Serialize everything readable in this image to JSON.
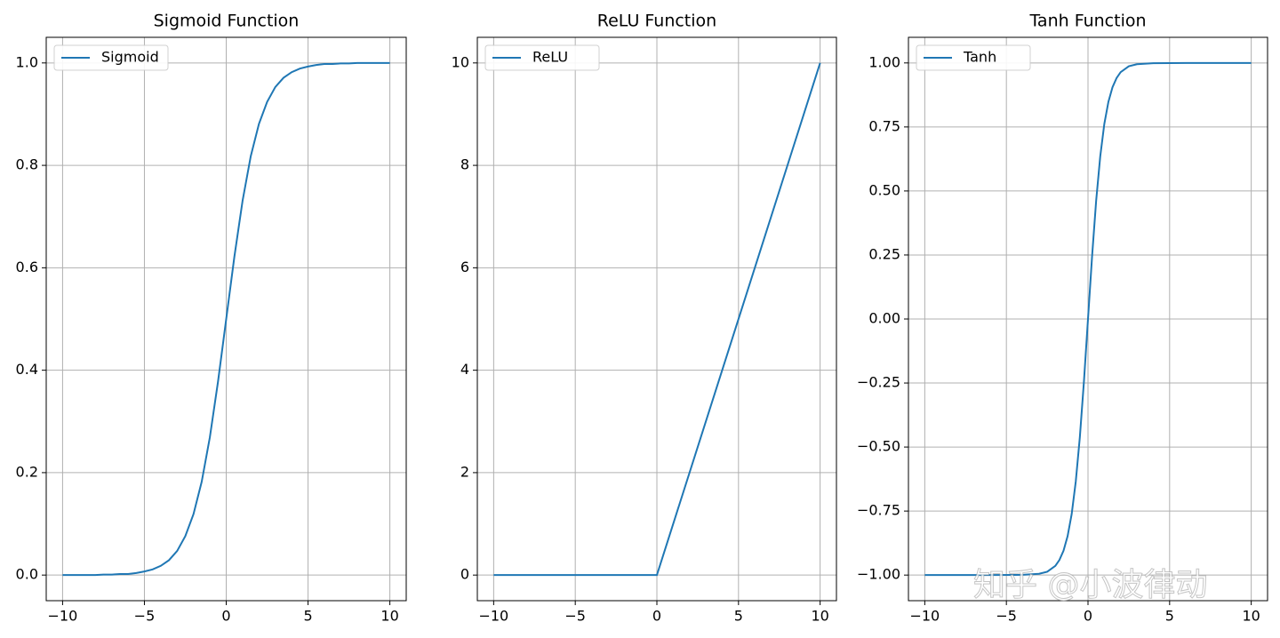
{
  "chart_data": [
    {
      "type": "line",
      "title": "Sigmoid Function",
      "x": [
        -10,
        -9.5,
        -9,
        -8.5,
        -8,
        -7.5,
        -7,
        -6.5,
        -6,
        -5.5,
        -5,
        -4.5,
        -4,
        -3.5,
        -3,
        -2.5,
        -2,
        -1.5,
        -1,
        -0.5,
        0,
        0.5,
        1,
        1.5,
        2,
        2.5,
        3,
        3.5,
        4,
        4.5,
        5,
        5.5,
        6,
        6.5,
        7,
        7.5,
        8,
        8.5,
        9,
        9.5,
        10
      ],
      "series": [
        {
          "name": "Sigmoid",
          "color": "#1f77b4",
          "values": [
            0,
            0,
            0,
            0,
            0,
            0.001,
            0.001,
            0.002,
            0.002,
            0.004,
            0.007,
            0.011,
            0.018,
            0.029,
            0.047,
            0.076,
            0.119,
            0.182,
            0.269,
            0.378,
            0.5,
            0.622,
            0.731,
            0.818,
            0.881,
            0.924,
            0.953,
            0.971,
            0.982,
            0.989,
            0.993,
            0.996,
            0.998,
            0.998,
            0.999,
            0.999,
            1,
            1,
            1,
            1,
            1
          ]
        }
      ],
      "xlim": [
        -11,
        11
      ],
      "ylim": [
        -0.05,
        1.05
      ],
      "xticks": [
        {
          "value": -10,
          "label": "−10"
        },
        {
          "value": -5,
          "label": "−5"
        },
        0,
        5,
        10
      ],
      "yticks": [
        {
          "value": 0,
          "label": "0.0"
        },
        {
          "value": 0.2,
          "label": "0.2"
        },
        {
          "value": 0.4,
          "label": "0.4"
        },
        {
          "value": 0.6,
          "label": "0.6"
        },
        {
          "value": 0.8,
          "label": "0.8"
        },
        {
          "value": 1,
          "label": "1.0"
        }
      ],
      "grid": true,
      "legend": "upper-left"
    },
    {
      "type": "line",
      "title": "ReLU Function",
      "x": [
        -10,
        0,
        10
      ],
      "series": [
        {
          "name": "ReLU",
          "color": "#1f77b4",
          "values": [
            0,
            0,
            10
          ]
        }
      ],
      "xlim": [
        -11,
        11
      ],
      "ylim": [
        -0.5,
        10.5
      ],
      "xticks": [
        {
          "value": -10,
          "label": "−10"
        },
        {
          "value": -5,
          "label": "−5"
        },
        0,
        5,
        10
      ],
      "yticks": [
        0,
        2,
        4,
        6,
        8,
        10
      ],
      "grid": true,
      "legend": "upper-left"
    },
    {
      "type": "line",
      "title": "Tanh Function",
      "x": [
        -10,
        -8,
        -6,
        -4,
        -3,
        -2.5,
        -2,
        -1.75,
        -1.5,
        -1.25,
        -1,
        -0.75,
        -0.5,
        -0.25,
        0,
        0.25,
        0.5,
        0.75,
        1,
        1.25,
        1.5,
        1.75,
        2,
        2.5,
        3,
        4,
        6,
        8,
        10
      ],
      "series": [
        {
          "name": "Tanh",
          "color": "#1f77b4",
          "values": [
            -1,
            -1,
            -1,
            -0.999,
            -0.995,
            -0.987,
            -0.964,
            -0.941,
            -0.905,
            -0.848,
            -0.762,
            -0.635,
            -0.462,
            -0.245,
            0,
            0.245,
            0.462,
            0.635,
            0.762,
            0.848,
            0.905,
            0.941,
            0.964,
            0.987,
            0.995,
            0.999,
            1,
            1,
            1
          ]
        }
      ],
      "xlim": [
        -11,
        11
      ],
      "ylim": [
        -1.1,
        1.1
      ],
      "xticks": [
        {
          "value": -10,
          "label": "−10"
        },
        {
          "value": -5,
          "label": "−5"
        },
        0,
        5,
        10
      ],
      "yticks": [
        {
          "value": -1,
          "label": "−1.00"
        },
        {
          "value": -0.75,
          "label": "−0.75"
        },
        {
          "value": -0.5,
          "label": "−0.50"
        },
        {
          "value": -0.25,
          "label": "−0.25"
        },
        {
          "value": 0,
          "label": "0.00"
        },
        {
          "value": 0.25,
          "label": "0.25"
        },
        {
          "value": 0.5,
          "label": "0.50"
        },
        {
          "value": 0.75,
          "label": "0.75"
        },
        {
          "value": 1,
          "label": "1.00"
        }
      ],
      "grid": true,
      "legend": "upper-left"
    }
  ],
  "watermark": "知乎 @小波律动"
}
